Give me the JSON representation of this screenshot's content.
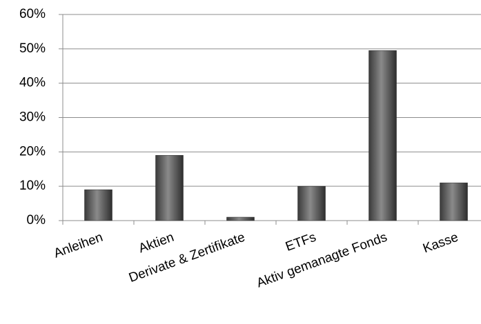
{
  "chart_data": {
    "type": "bar",
    "categories": [
      "Anleihen",
      "Aktien",
      "Derivate & Zertifikate",
      "ETFs",
      "Aktiv gemanagte Fonds",
      "Kasse"
    ],
    "values": [
      9,
      19,
      1,
      10,
      49.5,
      11
    ],
    "color": "#555555",
    "ylim": [
      0,
      60
    ],
    "yticks": [
      {
        "value": 0,
        "label": "0%"
      },
      {
        "value": 10,
        "label": "10%"
      },
      {
        "value": 20,
        "label": "20%"
      },
      {
        "value": 30,
        "label": "30%"
      },
      {
        "value": 40,
        "label": "40%"
      },
      {
        "value": 50,
        "label": "50%"
      },
      {
        "value": 60,
        "label": "60%"
      }
    ],
    "grid": true
  }
}
